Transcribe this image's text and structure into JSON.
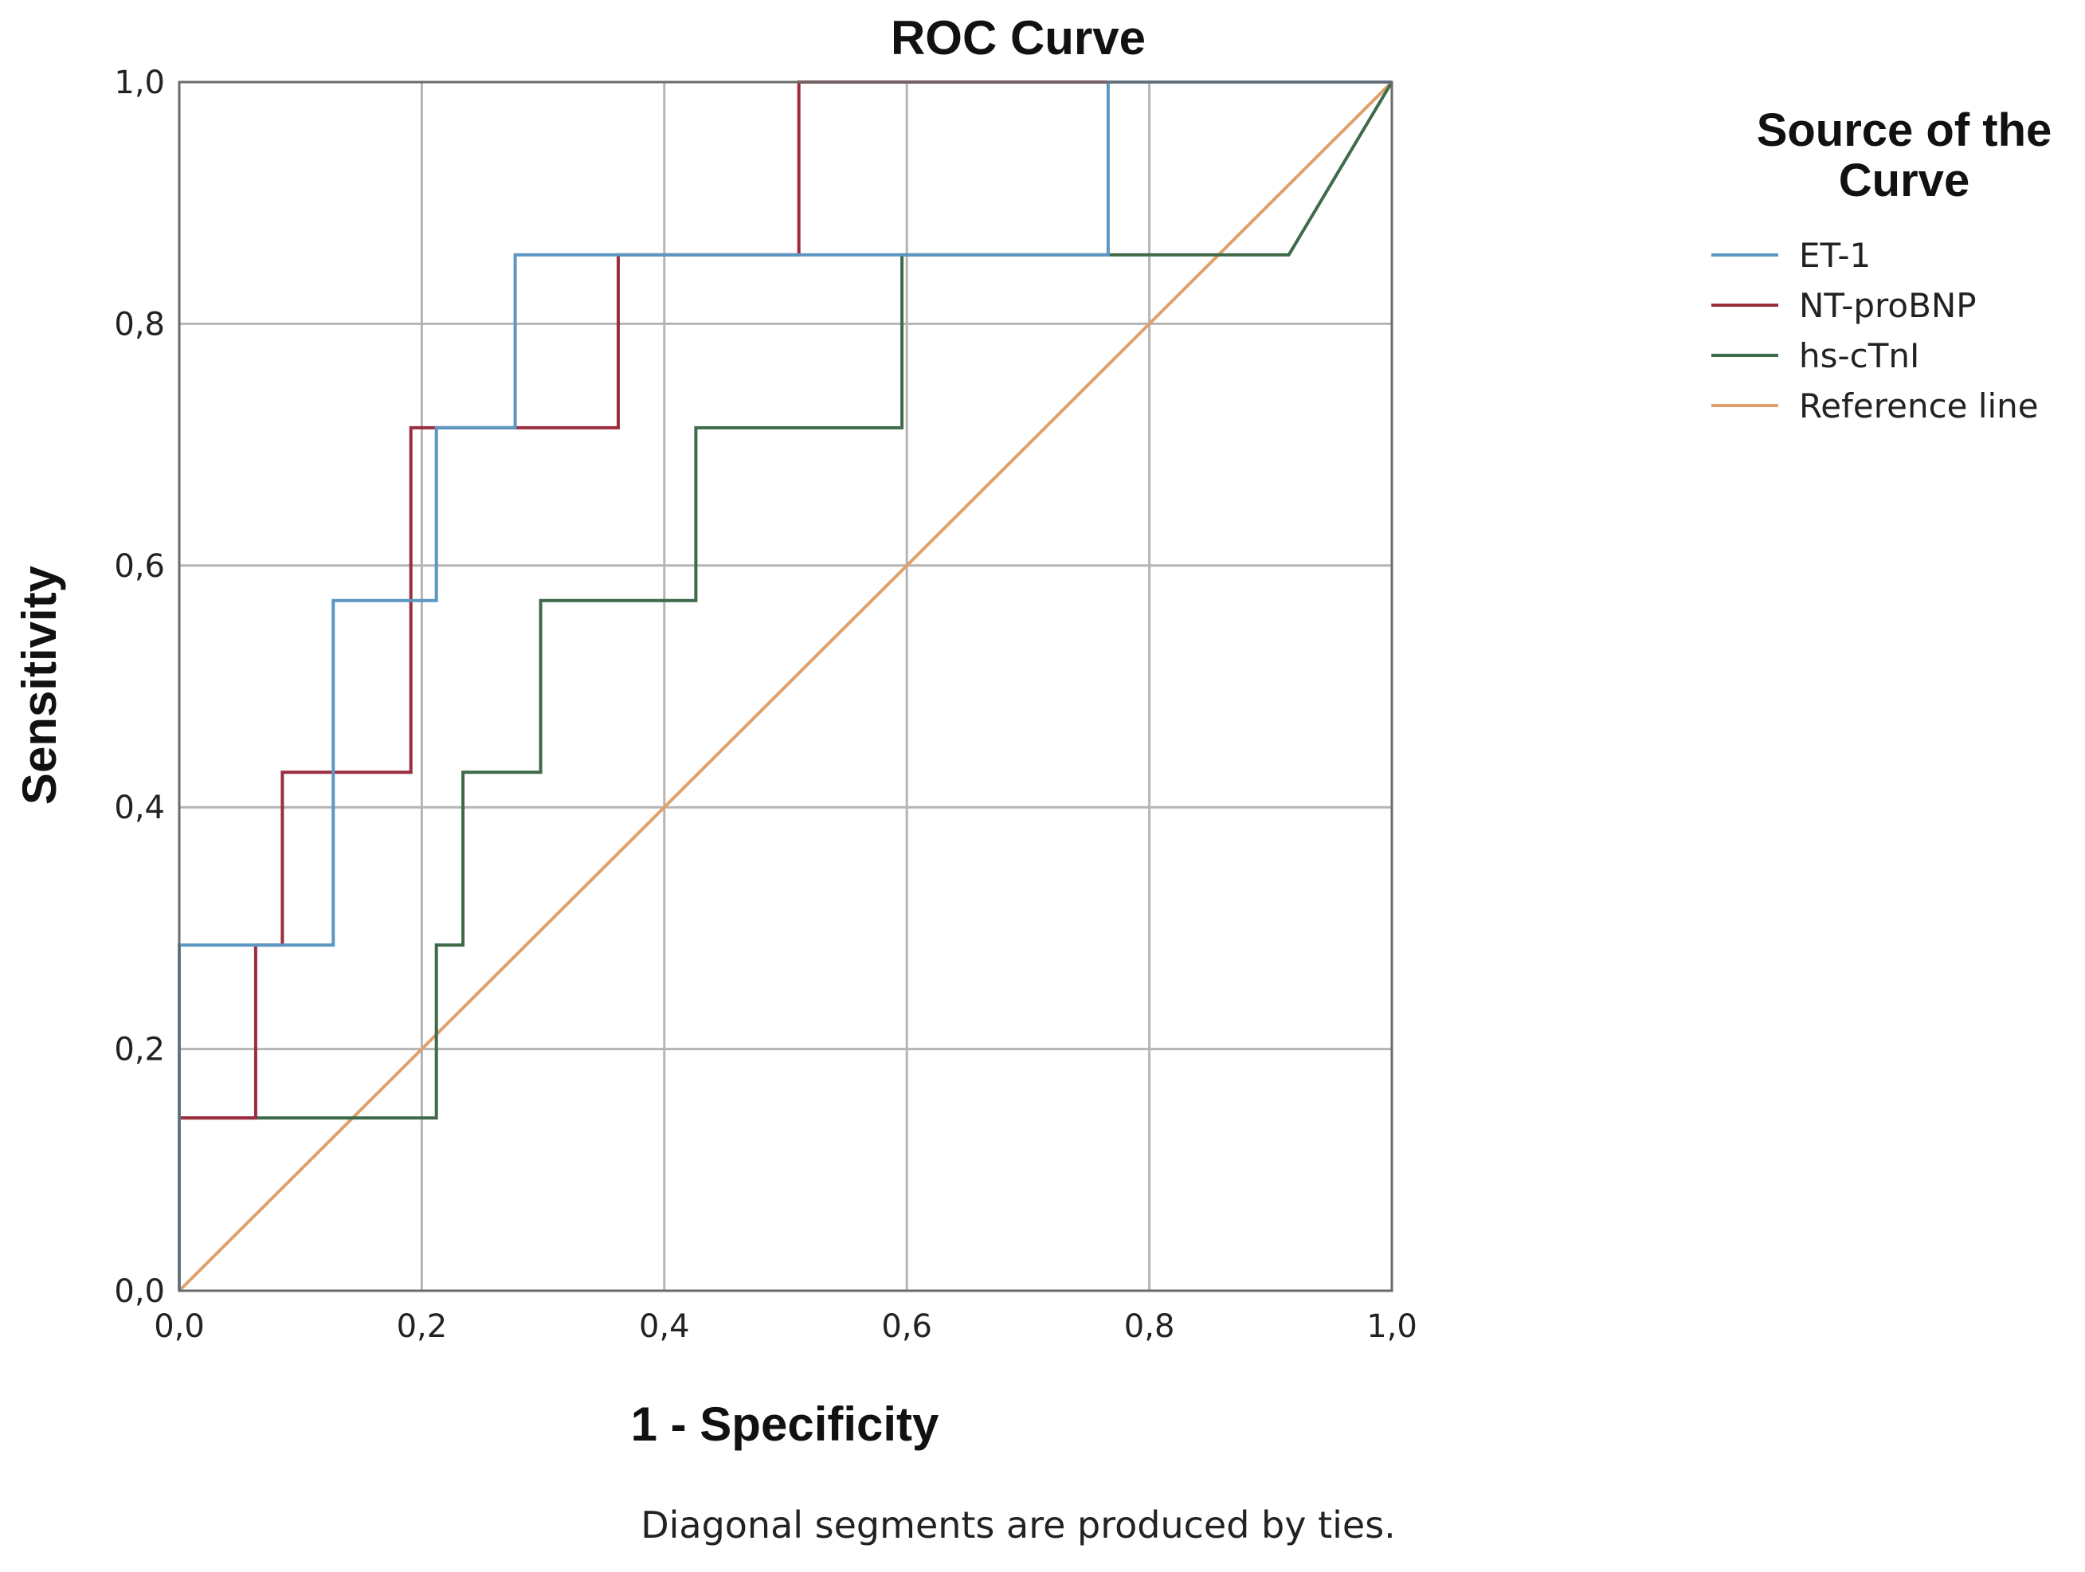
{
  "chart_data": {
    "type": "line",
    "title": "ROC Curve",
    "xlabel": "1 - Specificity",
    "ylabel": "Sensitivity",
    "xlim": [
      0,
      1
    ],
    "ylim": [
      0,
      1
    ],
    "x_ticks": [
      "0,0",
      "0,2",
      "0,4",
      "0,6",
      "0,8",
      "1,0"
    ],
    "y_ticks": [
      "0,0",
      "0,2",
      "0,4",
      "0,6",
      "0,8",
      "1,0"
    ],
    "grid": true,
    "legend_title": "Source of the Curve",
    "legend_position": "right",
    "footnote": "Diagonal segments are produced by ties.",
    "series": [
      {
        "name": "ET-1",
        "color": "#5b97c2",
        "points": [
          [
            0,
            0
          ],
          [
            0,
            0.286
          ],
          [
            0.127,
            0.286
          ],
          [
            0.127,
            0.571
          ],
          [
            0.212,
            0.571
          ],
          [
            0.212,
            0.714
          ],
          [
            0.277,
            0.714
          ],
          [
            0.277,
            0.857
          ],
          [
            0.766,
            0.857
          ],
          [
            0.766,
            1.0
          ],
          [
            1.0,
            1.0
          ]
        ]
      },
      {
        "name": "NT-proBNP",
        "color": "#9b2d3e",
        "points": [
          [
            0,
            0
          ],
          [
            0,
            0.143
          ],
          [
            0.063,
            0.143
          ],
          [
            0.063,
            0.286
          ],
          [
            0.085,
            0.286
          ],
          [
            0.085,
            0.429
          ],
          [
            0.191,
            0.429
          ],
          [
            0.191,
            0.714
          ],
          [
            0.362,
            0.714
          ],
          [
            0.362,
            0.857
          ],
          [
            0.511,
            0.857
          ],
          [
            0.511,
            1.0
          ],
          [
            1.0,
            1.0
          ]
        ]
      },
      {
        "name": "hs-cTnI",
        "color": "#3f6a4a",
        "points": [
          [
            0,
            0
          ],
          [
            0,
            0.143
          ],
          [
            0.212,
            0.143
          ],
          [
            0.212,
            0.286
          ],
          [
            0.234,
            0.286
          ],
          [
            0.234,
            0.429
          ],
          [
            0.298,
            0.429
          ],
          [
            0.298,
            0.571
          ],
          [
            0.426,
            0.571
          ],
          [
            0.426,
            0.714
          ],
          [
            0.596,
            0.714
          ],
          [
            0.596,
            0.857
          ],
          [
            0.915,
            0.857
          ],
          [
            1.0,
            1.0
          ]
        ]
      },
      {
        "name": "Reference line",
        "color": "#e0a06a",
        "points": [
          [
            0,
            0
          ],
          [
            1,
            1
          ]
        ]
      }
    ]
  }
}
